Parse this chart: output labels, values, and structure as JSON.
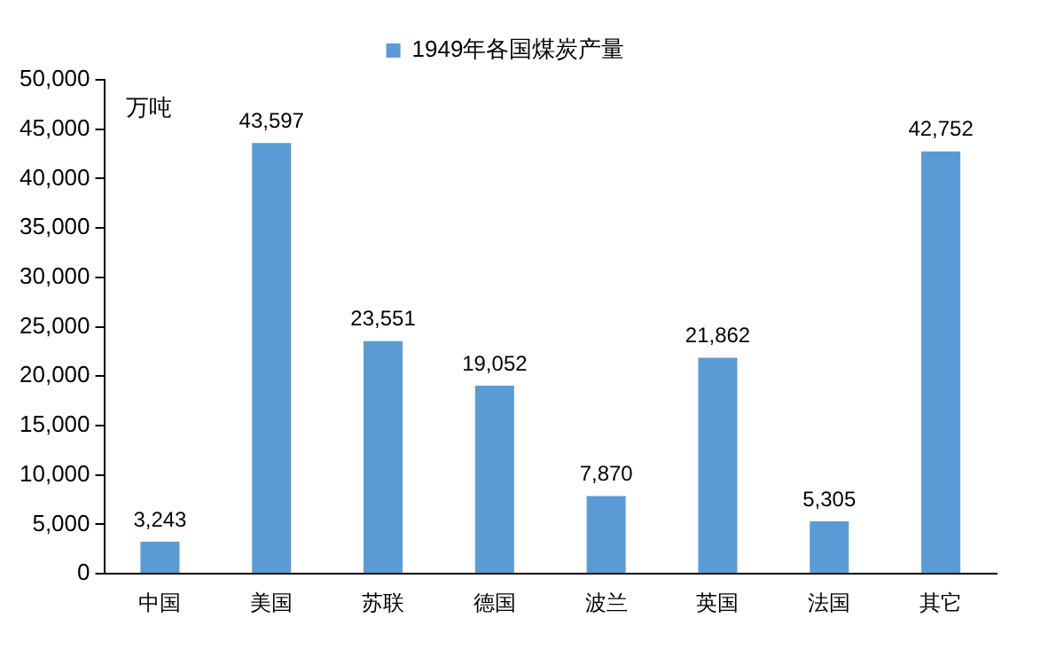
{
  "chart_data": {
    "type": "bar",
    "ylabel": "万吨",
    "categories": [
      "中国",
      "美国",
      "苏联",
      "德国",
      "波兰",
      "英国",
      "法国",
      "其它"
    ],
    "series": [
      {
        "name": "1949年各国煤炭产量",
        "color": "#5b9bd5",
        "values": [
          3243,
          43597,
          23551,
          19052,
          7870,
          21862,
          5305,
          42752
        ],
        "value_labels": [
          "3,243",
          "43,597",
          "23,551",
          "19,052",
          "7,870",
          "21,862",
          "5,305",
          "42,752"
        ]
      }
    ],
    "ylim": [
      0,
      50000
    ],
    "yticks": [
      {
        "value": 0,
        "label": "0"
      },
      {
        "value": 5000,
        "label": "5,000"
      },
      {
        "value": 10000,
        "label": "10,000"
      },
      {
        "value": 15000,
        "label": "15,000"
      },
      {
        "value": 20000,
        "label": "20,000"
      },
      {
        "value": 25000,
        "label": "25,000"
      },
      {
        "value": 30000,
        "label": "30,000"
      },
      {
        "value": 35000,
        "label": "35,000"
      },
      {
        "value": 40000,
        "label": "40,000"
      },
      {
        "value": 45000,
        "label": "45,000"
      },
      {
        "value": 50000,
        "label": "50,000"
      }
    ],
    "grid": false,
    "legend": "top"
  }
}
